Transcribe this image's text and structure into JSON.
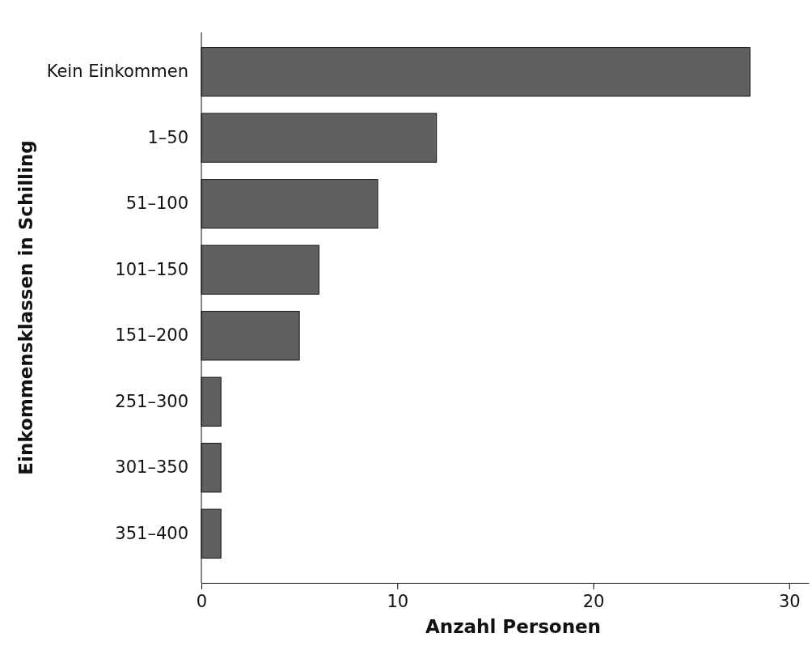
{
  "chart_data": {
    "type": "bar",
    "orientation": "horizontal",
    "xlabel": "Anzahl Personen",
    "ylabel": "Einkommensklassen in Schilling",
    "categories": [
      "Kein Einkommen",
      "1–50",
      "51–100",
      "101–150",
      "151–200",
      "251–300",
      "301–350",
      "351–400"
    ],
    "values": [
      28,
      12,
      9,
      6,
      5,
      1,
      1,
      1
    ],
    "color": "#5f6161",
    "xlim": [
      0,
      31
    ],
    "xticks": [
      0,
      10,
      20,
      30
    ],
    "grid": false
  }
}
